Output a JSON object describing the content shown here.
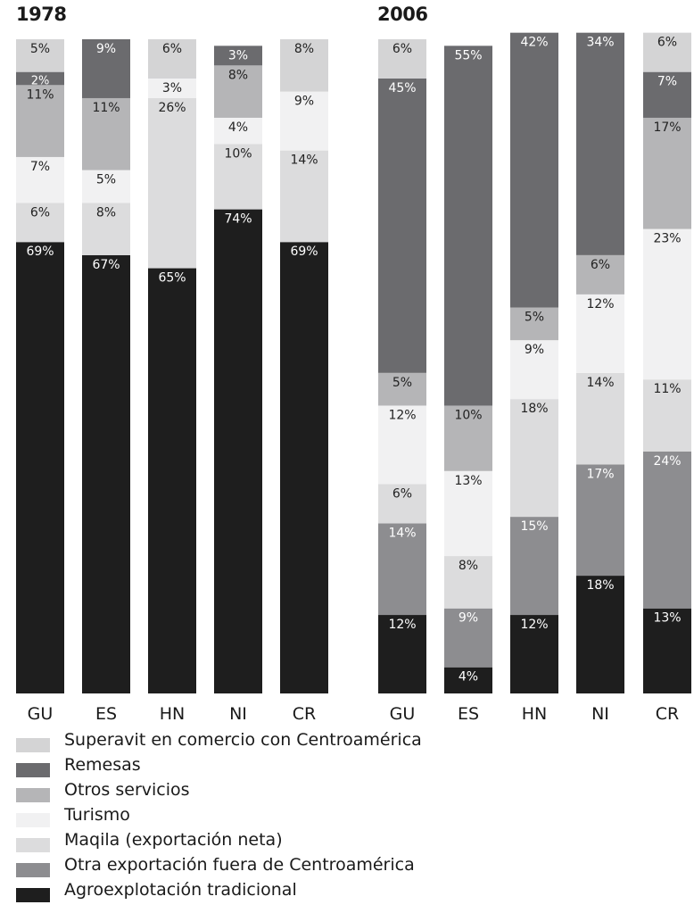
{
  "colors": {
    "Superavit en comercio con Centroamérica": "#d4d4d5",
    "Remesas": "#6b6b6e",
    "Otros servicios": "#b5b5b7",
    "Turismo": "#f1f1f2",
    "Maqila (exportación neta)": "#dcdcdd",
    "Otra exportación fuera de Centroamérica": "#8d8d90",
    "Agroexplotación tradicional": "#1e1e1e"
  },
  "chart_data": [
    {
      "type": "bar",
      "stacked": true,
      "title": "1978",
      "categories": [
        "GU",
        "ES",
        "HN",
        "NI",
        "CR"
      ],
      "ylim": [
        0,
        100
      ],
      "series": [
        {
          "name": "Agroexplotación tradicional",
          "values": [
            69,
            67,
            65,
            74,
            69
          ]
        },
        {
          "name": "Otra exportación fuera de Centroamérica",
          "values": [
            0,
            0,
            0,
            0,
            0
          ]
        },
        {
          "name": "Maqila (exportación neta)",
          "values": [
            6,
            8,
            26,
            10,
            14
          ]
        },
        {
          "name": "Turismo",
          "values": [
            7,
            5,
            3,
            4,
            9
          ]
        },
        {
          "name": "Otros servicios",
          "values": [
            11,
            11,
            0,
            8,
            0
          ]
        },
        {
          "name": "Remesas",
          "values": [
            2,
            9,
            0,
            3,
            0
          ]
        },
        {
          "name": "Superavit en comercio con Centroamérica",
          "values": [
            5,
            0,
            6,
            0,
            8
          ]
        }
      ]
    },
    {
      "type": "bar",
      "stacked": true,
      "title": "2006",
      "categories": [
        "GU",
        "ES",
        "HN",
        "NI",
        "CR"
      ],
      "ylim": [
        0,
        100
      ],
      "series": [
        {
          "name": "Agroexplotación tradicional",
          "values": [
            12,
            4,
            12,
            18,
            13
          ]
        },
        {
          "name": "Otra exportación fuera de Centroamérica",
          "values": [
            14,
            9,
            15,
            17,
            24
          ]
        },
        {
          "name": "Maqila (exportación neta)",
          "values": [
            6,
            8,
            18,
            14,
            11
          ]
        },
        {
          "name": "Turismo",
          "values": [
            12,
            13,
            9,
            12,
            23
          ]
        },
        {
          "name": "Otros servicios",
          "values": [
            5,
            10,
            5,
            6,
            17
          ]
        },
        {
          "name": "Remesas",
          "values": [
            45,
            55,
            42,
            34,
            7
          ]
        },
        {
          "name": "Superavit en comercio con Centroamérica",
          "values": [
            6,
            0,
            0,
            0,
            6
          ]
        }
      ]
    }
  ],
  "legend": [
    "Superavit en comercio con Centroamérica",
    "Remesas",
    "Otros servicios",
    "Turismo",
    "Maqila (exportación neta)",
    "Otra exportación fuera de Centroamérica",
    "Agroexplotación tradicional"
  ]
}
